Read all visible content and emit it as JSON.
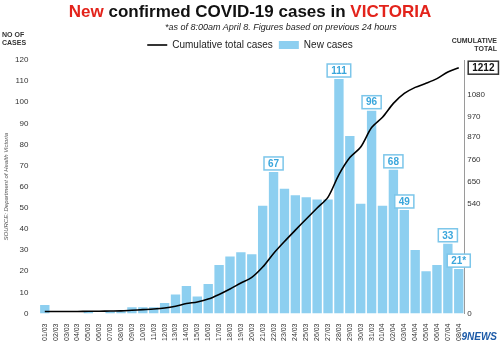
{
  "chart_data": {
    "type": "bar",
    "title": "New confirmed COVID-19 cases in VICTORIA",
    "subtitle": "*as of 8:00am April 8. Figures based on previous 24 hours",
    "y_label": "NO OF CASES",
    "y2_label": "CUMULATIVE TOTAL",
    "annotations": [
      "SOURCE: Department of Health Victoria",
      "9NEWS"
    ],
    "categories": [
      "01/03",
      "02/03",
      "03/03",
      "04/03",
      "05/03",
      "06/03",
      "07/03",
      "08/03",
      "09/03",
      "10/03",
      "11/03",
      "12/03",
      "13/03",
      "14/03",
      "15/03",
      "16/03",
      "17/03",
      "18/03",
      "19/03",
      "20/03",
      "21/03",
      "22/03",
      "23/03",
      "24/03",
      "25/03",
      "26/03",
      "27/03",
      "28/03",
      "29/03",
      "30/03",
      "31/03",
      "01/04",
      "02/04",
      "03/04",
      "04/04",
      "05/04",
      "06/04",
      "07/04",
      "08/04"
    ],
    "series": [
      {
        "name": "Cumulative total cases",
        "type": "line",
        "axis": "y2",
        "color": "#000000",
        "values": [
          10,
          10,
          10,
          10,
          11,
          11,
          12,
          13,
          16,
          19,
          22,
          27,
          36,
          49,
          57,
          71,
          94,
          121,
          150,
          178,
          229,
          296,
          355,
          411,
          466,
          520,
          574,
          685,
          769,
          821,
          917,
          968,
          1036,
          1085,
          1115,
          1135,
          1158,
          1191,
          1212
        ],
        "value_labels": [
          null,
          null,
          null,
          null,
          null,
          null,
          null,
          null,
          null,
          null,
          null,
          null,
          null,
          null,
          null,
          null,
          null,
          null,
          null,
          null,
          null,
          null,
          null,
          null,
          null,
          null,
          null,
          null,
          null,
          null,
          null,
          null,
          null,
          null,
          null,
          null,
          null,
          null,
          "1212"
        ]
      },
      {
        "name": "New cases",
        "type": "bar",
        "color": "#8dcff0",
        "values": [
          4,
          0,
          0,
          0,
          1,
          0,
          1,
          1,
          3,
          3,
          3,
          5,
          9,
          13,
          8,
          14,
          23,
          27,
          29,
          28,
          51,
          67,
          59,
          56,
          55,
          54,
          54,
          111,
          84,
          52,
          96,
          51,
          68,
          49,
          30,
          20,
          23,
          33,
          21
        ],
        "value_labels": [
          null,
          null,
          null,
          null,
          null,
          null,
          null,
          null,
          null,
          null,
          null,
          null,
          null,
          null,
          null,
          null,
          null,
          null,
          null,
          null,
          null,
          "67",
          null,
          null,
          null,
          null,
          null,
          "111",
          null,
          null,
          "96",
          null,
          "68",
          "49",
          null,
          null,
          null,
          "33",
          "21*"
        ]
      }
    ],
    "ylim": [
      0,
      120
    ],
    "yticks": [
      0,
      10,
      20,
      30,
      40,
      50,
      60,
      70,
      80,
      90,
      100,
      110,
      120
    ],
    "y2lim": [
      0,
      1250
    ],
    "y2ticks": [
      0,
      540,
      650,
      760,
      870,
      970,
      1080
    ],
    "grid": false,
    "legend": "top"
  }
}
